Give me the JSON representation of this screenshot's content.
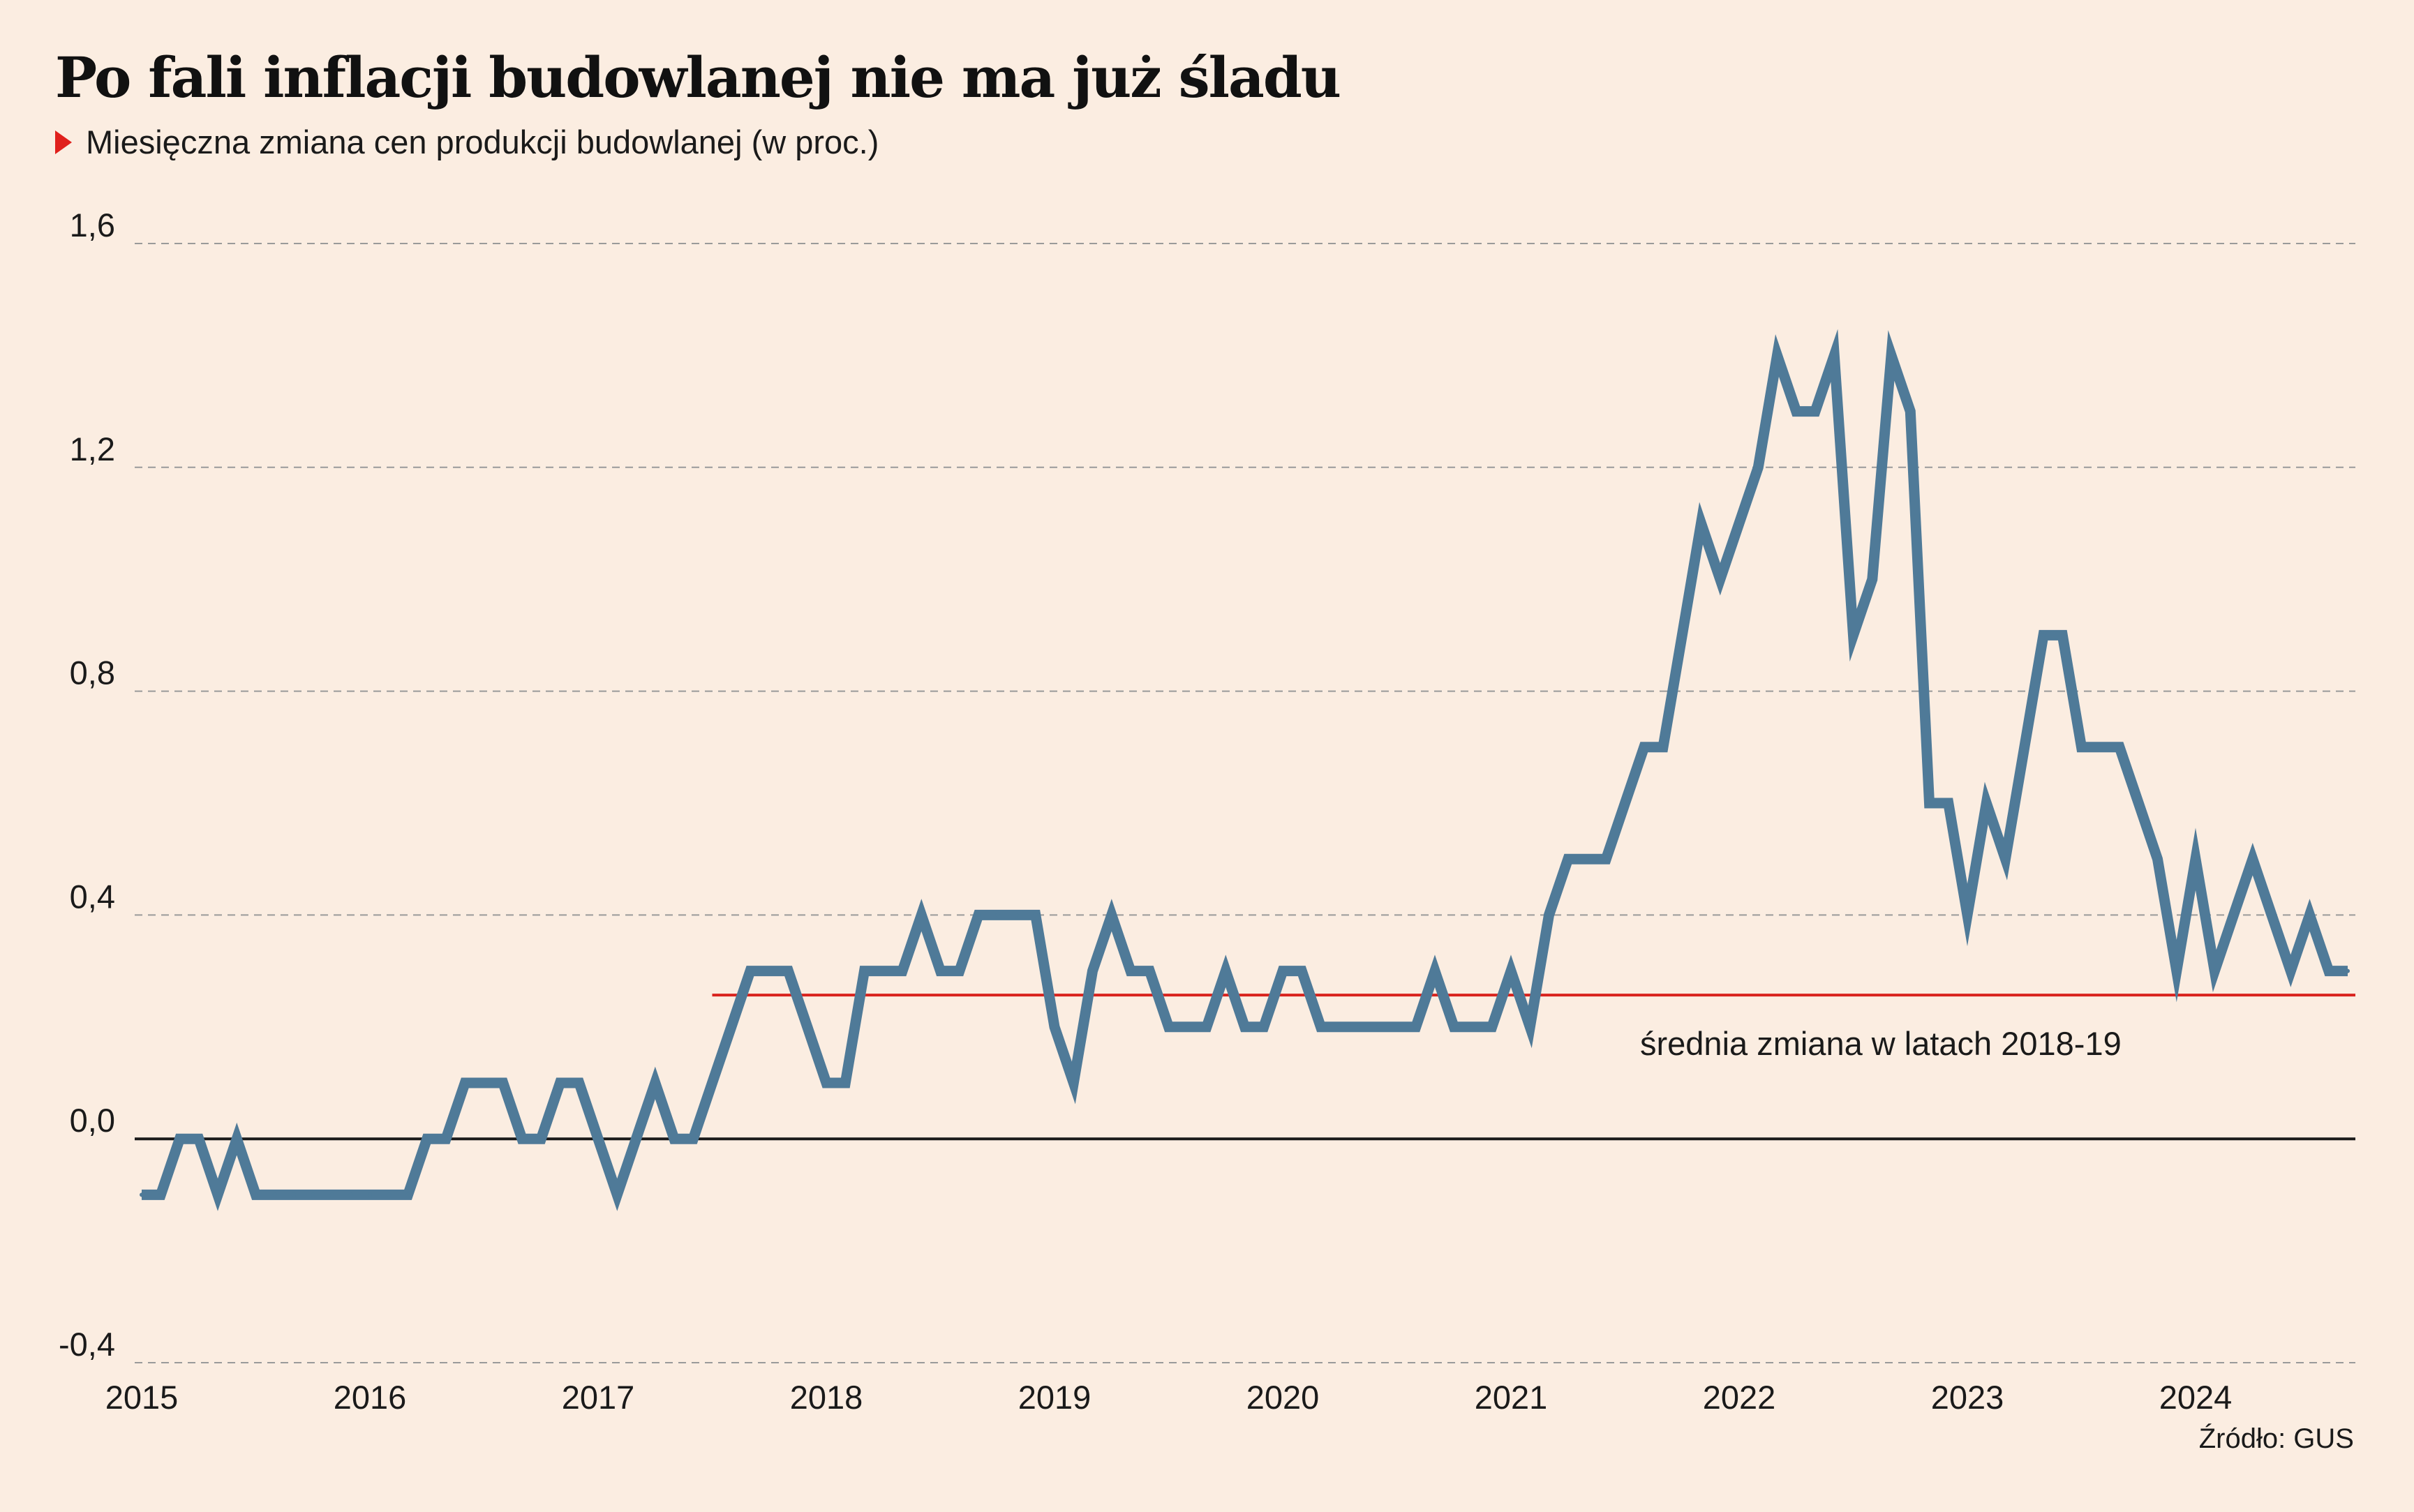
{
  "title": "Po fali inflacji budowlanej nie ma już śladu",
  "subtitle": "Miesięczna zmiana cen produkcji budowlanej (w proc.)",
  "source": "Źródło: GUS",
  "colors": {
    "background": "#fbede1",
    "series": "#4f7a98",
    "reference_line": "#d9231d",
    "subtitle_marker": "#e0201c",
    "zero_line": "#1a1a1a",
    "gridline": "#9a9a9a"
  },
  "chart_data": {
    "type": "line",
    "ylim": [
      -0.4,
      1.6
    ],
    "y_ticks": [
      "1,6",
      "1,2",
      "0,8",
      "0,4",
      "0,0",
      "-0,4"
    ],
    "y_tick_values": [
      1.6,
      1.2,
      0.8,
      0.4,
      0.0,
      -0.4
    ],
    "x_tick_labels": [
      "2015",
      "2016",
      "2017",
      "2018",
      "2019",
      "2020",
      "2021",
      "2022",
      "2023",
      "2024"
    ],
    "grid": "horizontal dashed",
    "x_start": "2015-01",
    "series": [
      {
        "values": [
          -0.1,
          -0.1,
          0.0,
          0.0,
          -0.1,
          0.0,
          -0.1,
          -0.1,
          -0.1,
          -0.1,
          -0.1,
          -0.1,
          -0.1,
          -0.1,
          -0.1,
          0.0,
          0.0,
          0.1,
          0.1,
          0.1,
          0.0,
          0.0,
          0.1,
          0.1,
          0.0,
          -0.1,
          0.0,
          0.1,
          0.0,
          0.0,
          0.1,
          0.2,
          0.3,
          0.3,
          0.3,
          0.2,
          0.1,
          0.1,
          0.3,
          0.3,
          0.3,
          0.4,
          0.3,
          0.3,
          0.4,
          0.4,
          0.4,
          0.4,
          0.2,
          0.1,
          0.3,
          0.4,
          0.3,
          0.3,
          0.2,
          0.2,
          0.2,
          0.3,
          0.2,
          0.2,
          0.3,
          0.3,
          0.2,
          0.2,
          0.2,
          0.2,
          0.2,
          0.2,
          0.3,
          0.2,
          0.2,
          0.2,
          0.3,
          0.2,
          0.4,
          0.5,
          0.5,
          0.5,
          0.6,
          0.7,
          0.7,
          0.9,
          1.1,
          1.0,
          1.1,
          1.2,
          1.4,
          1.3,
          1.3,
          1.4,
          0.9,
          1.0,
          1.4,
          1.3,
          0.6,
          0.6,
          0.4,
          0.6,
          0.5,
          0.7,
          0.9,
          0.9,
          0.7,
          0.7,
          0.7,
          0.6,
          0.5,
          0.3,
          0.5,
          0.3,
          0.4,
          0.5,
          0.4,
          0.3,
          0.4,
          0.3,
          0.3
        ]
      }
    ],
    "reference_line": {
      "value": 0.257,
      "start": "2017-07",
      "label": "średnia zmiana w latach 2018-19"
    }
  }
}
